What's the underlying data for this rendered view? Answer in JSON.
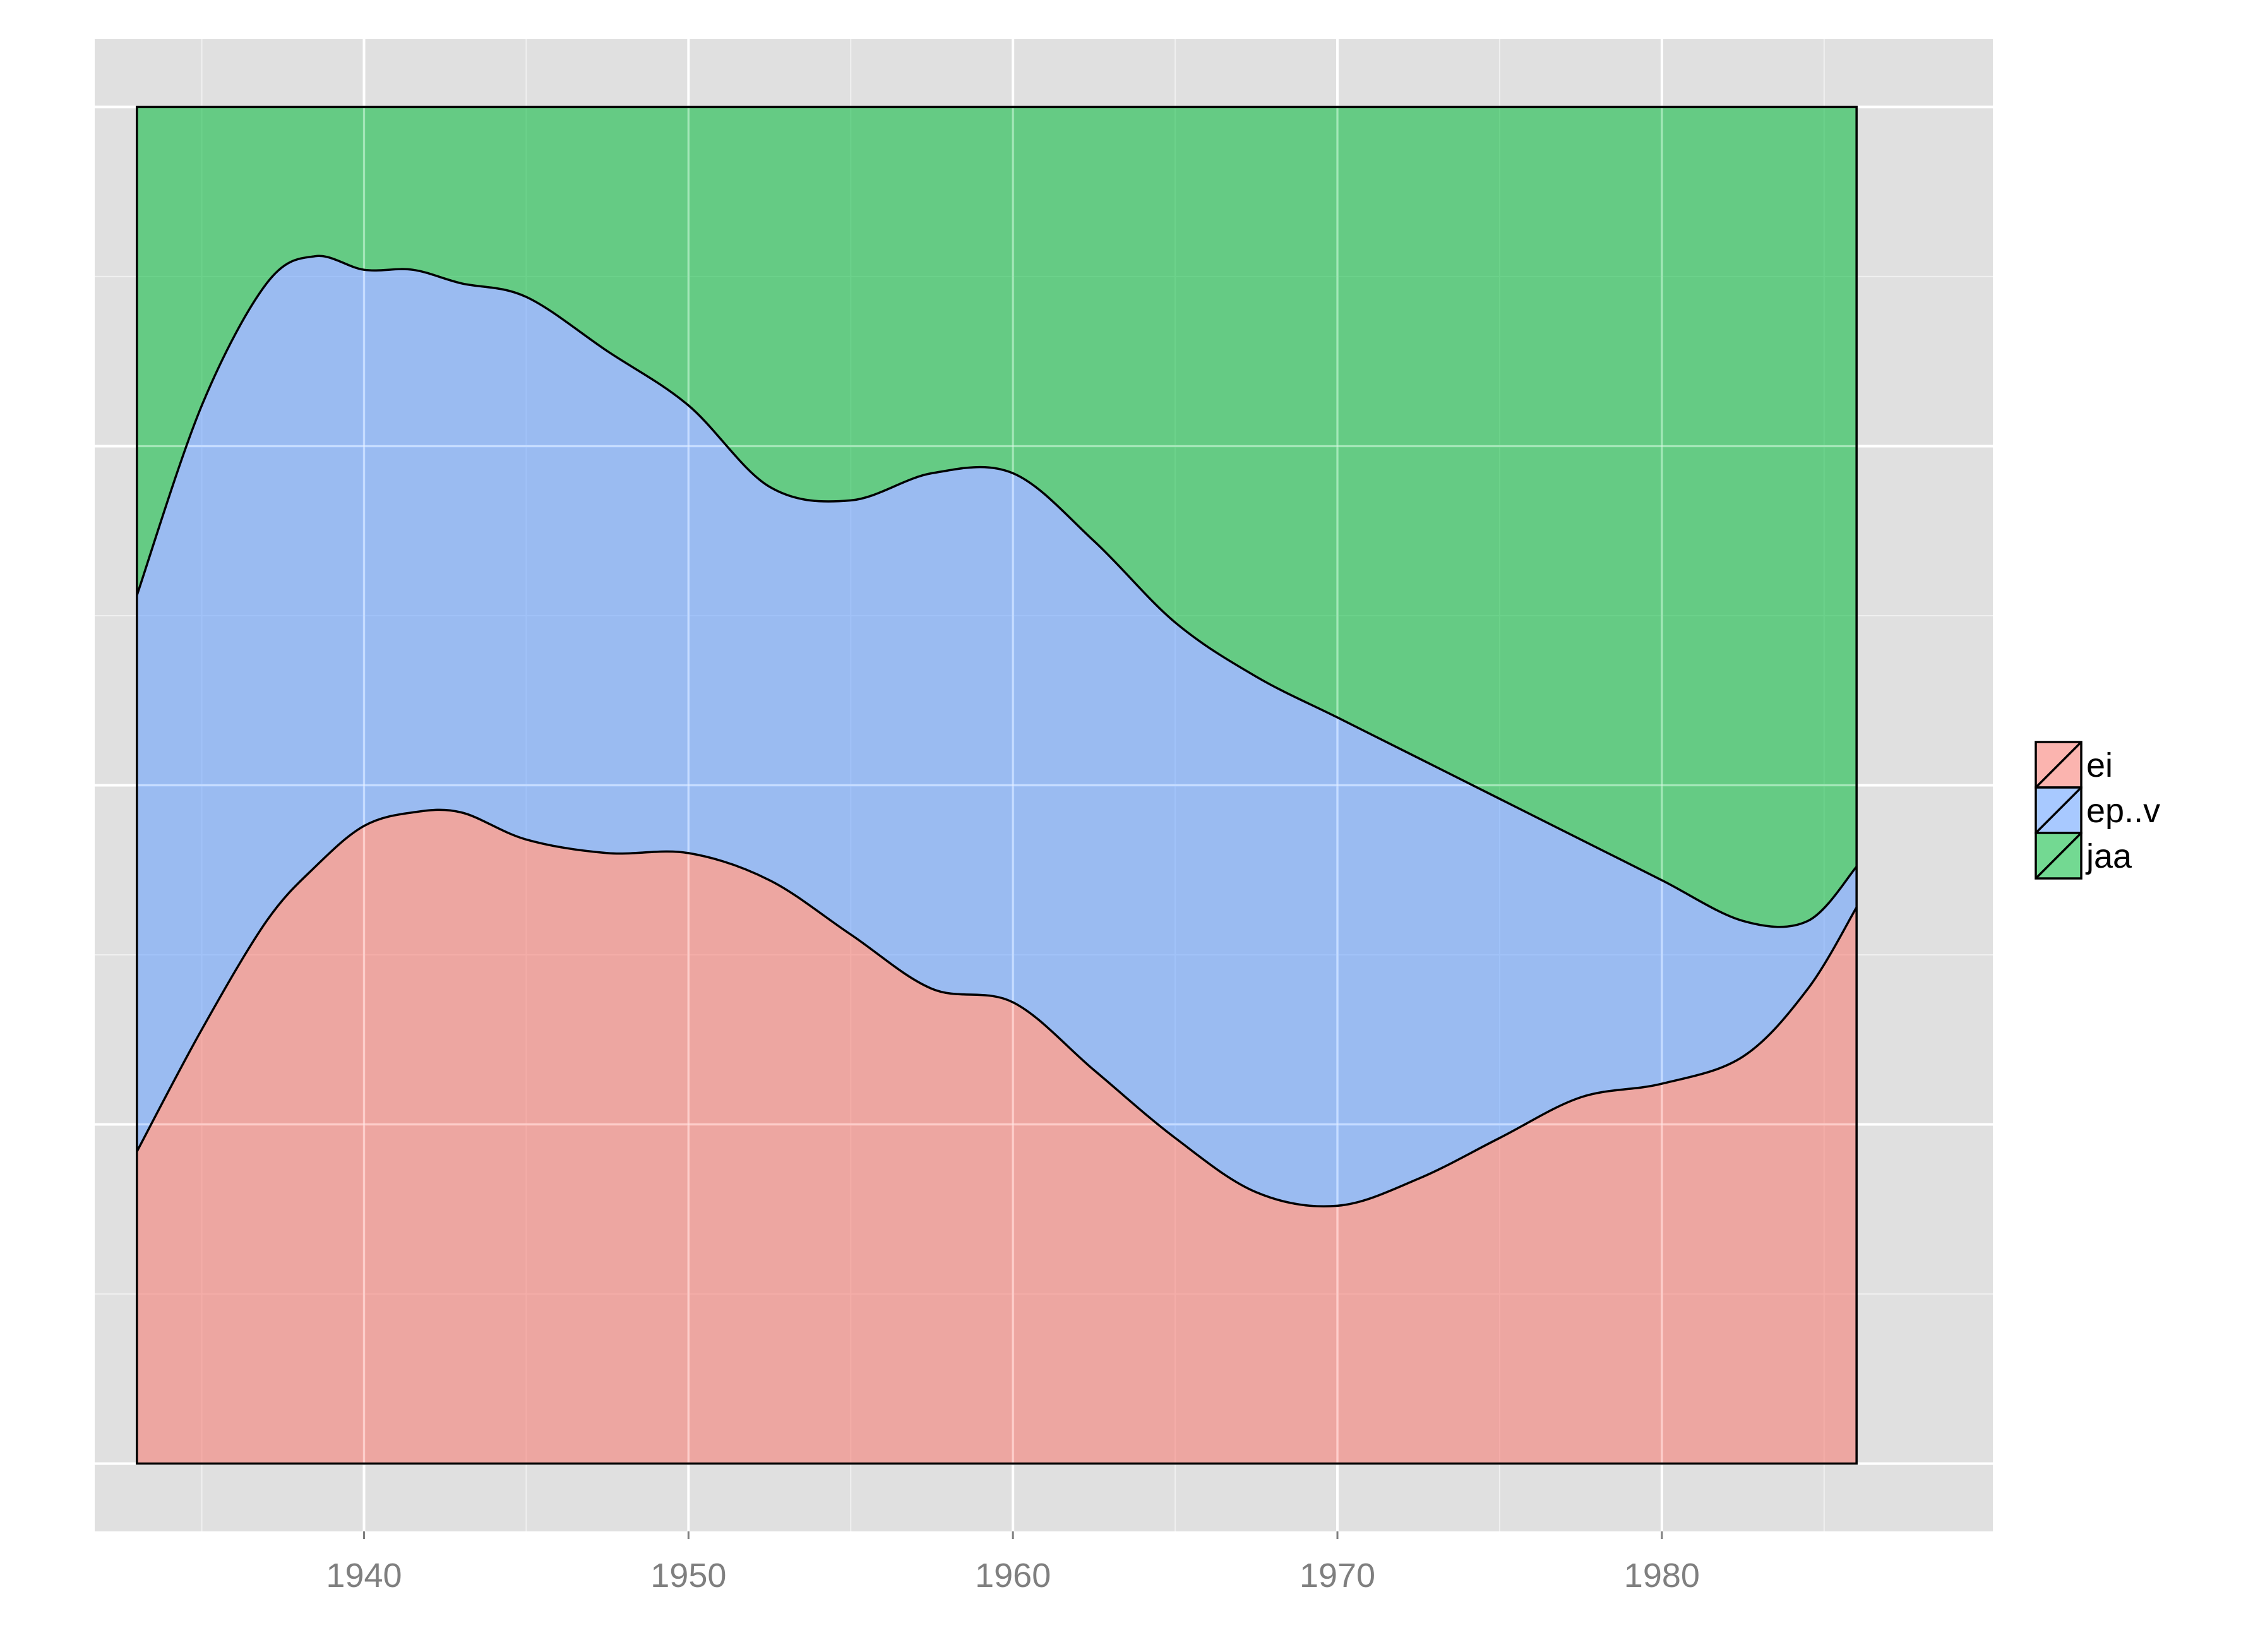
{
  "chart_data": {
    "type": "area",
    "stacking": "proportion",
    "title": "",
    "xlabel": "",
    "ylabel": "",
    "xlim": [
      1931.7,
      1990.2
    ],
    "ylim": [
      -0.05,
      1.05
    ],
    "x_ticks": [
      1940,
      1950,
      1960,
      1970,
      1980
    ],
    "x_tick_labels": [
      "1940",
      "1950",
      "1960",
      "1970",
      "1980"
    ],
    "y_ticks_shown": false,
    "grid": true,
    "legend_position": "right",
    "x": [
      1933.0,
      1935.0,
      1937.0,
      1938.5,
      1940.0,
      1941.5,
      1943.0,
      1945.0,
      1947.5,
      1950.0,
      1952.5,
      1955.0,
      1957.5,
      1960.0,
      1962.5,
      1965.0,
      1967.5,
      1970.0,
      1972.5,
      1975.0,
      1977.5,
      1980.0,
      1982.5,
      1984.5,
      1986.0
    ],
    "series": [
      {
        "name": "ei",
        "color": "#f8766d",
        "cumulative_top": [
          0.23,
          0.32,
          0.4,
          0.44,
          0.47,
          0.48,
          0.48,
          0.46,
          0.45,
          0.45,
          0.43,
          0.39,
          0.35,
          0.34,
          0.29,
          0.24,
          0.2,
          0.19,
          0.21,
          0.24,
          0.27,
          0.28,
          0.3,
          0.35,
          0.41
        ]
      },
      {
        "name": "ep..v",
        "color": "#619cff",
        "cumulative_top": [
          0.64,
          0.78,
          0.87,
          0.89,
          0.88,
          0.88,
          0.87,
          0.86,
          0.82,
          0.78,
          0.72,
          0.71,
          0.73,
          0.73,
          0.68,
          0.62,
          0.58,
          0.55,
          0.52,
          0.49,
          0.46,
          0.43,
          0.4,
          0.4,
          0.44
        ]
      },
      {
        "name": "jaa",
        "color": "#00ba38",
        "cumulative_top": [
          1.0,
          1.0,
          1.0,
          1.0,
          1.0,
          1.0,
          1.0,
          1.0,
          1.0,
          1.0,
          1.0,
          1.0,
          1.0,
          1.0,
          1.0,
          1.0,
          1.0,
          1.0,
          1.0,
          1.0,
          1.0,
          1.0,
          1.0,
          1.0,
          1.0
        ]
      }
    ],
    "legend": [
      "ei",
      "ep..v",
      "jaa"
    ]
  }
}
